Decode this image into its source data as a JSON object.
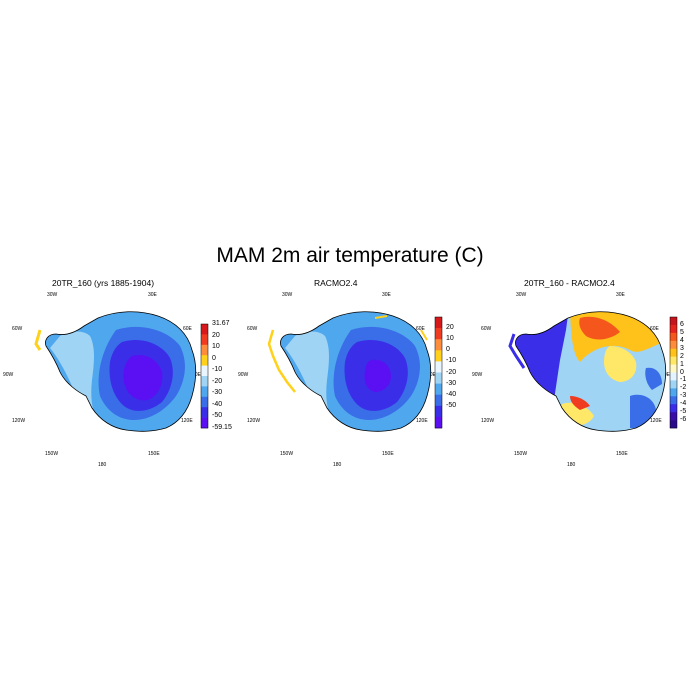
{
  "title": "MAM 2m air temperature (C)",
  "panels": [
    {
      "title": "20TR_160 (yrs 1885-1904)",
      "colorbar": {
        "labels": [
          "31.67",
          "20",
          "10",
          "0",
          "-10",
          "-20",
          "-30",
          "-40",
          "-50",
          "-59.15"
        ],
        "colors": [
          "#d7191c",
          "#f03b20",
          "#fd8d3c",
          "#ffd11a",
          "#eaf6ff",
          "#9fd4f5",
          "#4fa7ee",
          "#3a6de8",
          "#3a2ee8",
          "#5a10f2"
        ]
      }
    },
    {
      "title": "RACMO2.4",
      "colorbar": {
        "labels": [
          "20",
          "10",
          "0",
          "-10",
          "-20",
          "-30",
          "-40",
          "-50"
        ],
        "colors": [
          "#d7191c",
          "#f03b20",
          "#fd8d3c",
          "#ffd11a",
          "#eaf6ff",
          "#9fd4f5",
          "#4fa7ee",
          "#3a6de8",
          "#3a2ee8",
          "#5a10f2"
        ]
      }
    },
    {
      "title": "20TR_160 - RACMO2.4",
      "colorbar": {
        "labels": [
          "6",
          "5",
          "4",
          "3",
          "2",
          "1",
          "0",
          "-1",
          "-2",
          "-3",
          "-4",
          "-5",
          "-6"
        ],
        "colors": [
          "#c5141c",
          "#e6221c",
          "#f5561c",
          "#fd8d3c",
          "#ffc21a",
          "#ffe868",
          "#fff7c4",
          "#e3f3ff",
          "#9fd4f5",
          "#4fa7ee",
          "#3a6de8",
          "#3a2ee8",
          "#3a0fa8",
          "#2a0a88"
        ]
      }
    }
  ],
  "lon_labels": [
    "30W",
    "30E",
    "60W",
    "60E",
    "90W",
    "90E",
    "120W",
    "120E",
    "150W",
    "150E",
    "180"
  ]
}
